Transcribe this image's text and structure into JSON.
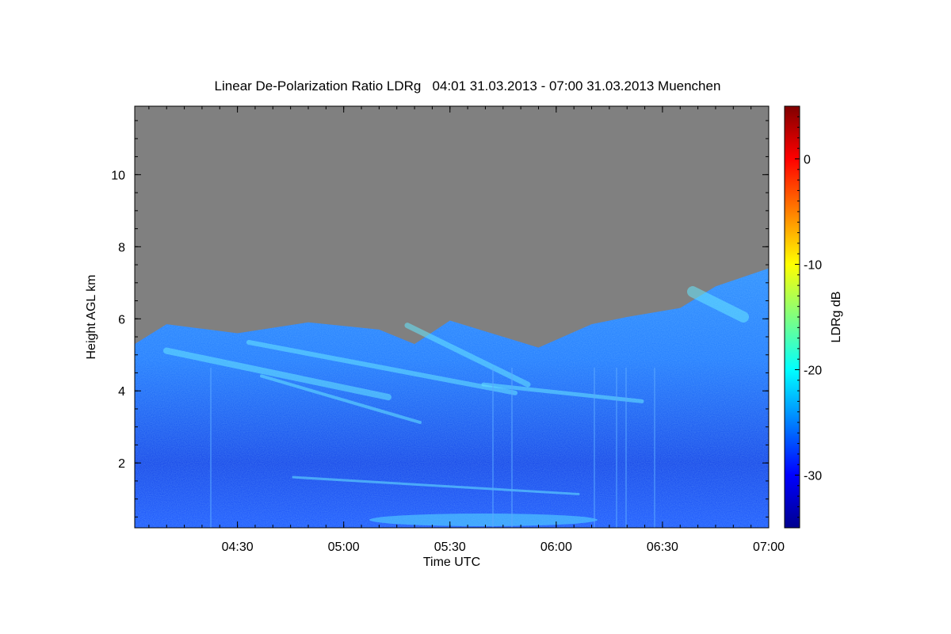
{
  "chart_data": {
    "type": "heatmap",
    "title": "Linear De-Polarization Ratio LDRg   04:01 31.03.2013 - 07:00 31.03.2013 Muenchen",
    "xlabel": "Time UTC",
    "ylabel": "Height AGL km",
    "colorbar_label": "LDRg dB",
    "x_range": [
      "04:01",
      "07:00"
    ],
    "x_ticks": [
      "04:30",
      "05:00",
      "05:30",
      "06:00",
      "06:30",
      "07:00"
    ],
    "y_range": [
      0.2,
      11.9
    ],
    "y_ticks": [
      2,
      4,
      6,
      8,
      10
    ],
    "colorbar_range": [
      -35,
      5
    ],
    "colorbar_ticks": [
      -30,
      -20,
      -10,
      0
    ],
    "colormap": "jet",
    "no_signal_color": "#808080",
    "aerosol_top_km": [
      {
        "time": "04:01",
        "height": 5.3
      },
      {
        "time": "04:10",
        "height": 5.85
      },
      {
        "time": "04:30",
        "height": 5.6
      },
      {
        "time": "04:50",
        "height": 5.9
      },
      {
        "time": "05:10",
        "height": 5.7
      },
      {
        "time": "05:20",
        "height": 5.3
      },
      {
        "time": "05:30",
        "height": 5.95
      },
      {
        "time": "05:45",
        "height": 5.5
      },
      {
        "time": "05:55",
        "height": 5.2
      },
      {
        "time": "06:10",
        "height": 5.85
      },
      {
        "time": "06:20",
        "height": 6.05
      },
      {
        "time": "06:35",
        "height": 6.3
      },
      {
        "time": "06:45",
        "height": 6.9
      },
      {
        "time": "07:00",
        "height": 7.4
      }
    ]
  }
}
